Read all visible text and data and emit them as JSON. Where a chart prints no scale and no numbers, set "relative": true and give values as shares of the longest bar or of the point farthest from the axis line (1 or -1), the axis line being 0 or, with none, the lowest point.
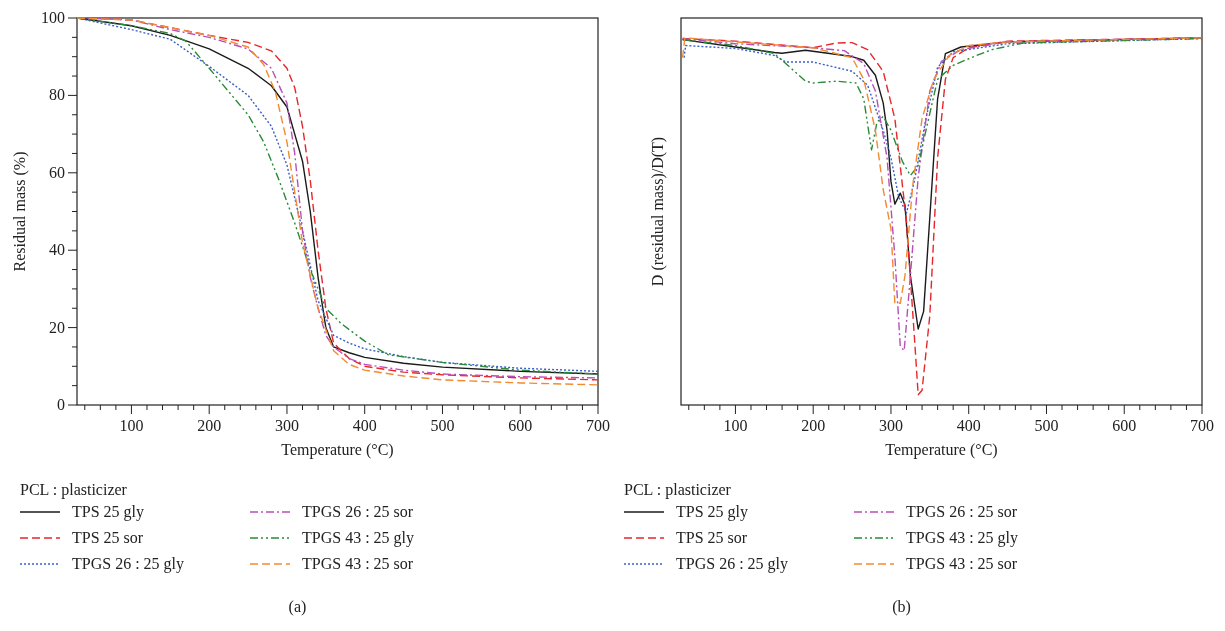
{
  "chart_data": [
    {
      "type": "line",
      "xlabel": "Temperature (°C)",
      "ylabel": "Residual mass (%)",
      "xlim": [
        30,
        700
      ],
      "ylim": [
        0,
        100
      ],
      "xticks": [
        {
          "value": 40,
          "label": null
        },
        {
          "value": 60,
          "label": null
        },
        {
          "value": 80,
          "label": null
        },
        100,
        {
          "value": 120,
          "label": null
        },
        {
          "value": 140,
          "label": null
        },
        {
          "value": 160,
          "label": null
        },
        {
          "value": 180,
          "label": null
        },
        200,
        {
          "value": 220,
          "label": null
        },
        {
          "value": 240,
          "label": null
        },
        {
          "value": 260,
          "label": null
        },
        {
          "value": 280,
          "label": null
        },
        300,
        {
          "value": 320,
          "label": null
        },
        {
          "value": 340,
          "label": null
        },
        {
          "value": 360,
          "label": null
        },
        {
          "value": 380,
          "label": null
        },
        400,
        {
          "value": 420,
          "label": null
        },
        {
          "value": 440,
          "label": null
        },
        {
          "value": 460,
          "label": null
        },
        {
          "value": 480,
          "label": null
        },
        500,
        {
          "value": 520,
          "label": null
        },
        {
          "value": 540,
          "label": null
        },
        {
          "value": 560,
          "label": null
        },
        {
          "value": 580,
          "label": null
        },
        600,
        {
          "value": 620,
          "label": null
        },
        {
          "value": 640,
          "label": null
        },
        {
          "value": 660,
          "label": null
        },
        {
          "value": 680,
          "label": null
        },
        700
      ],
      "yticks": [
        0,
        {
          "value": 5,
          "label": null
        },
        {
          "value": 10,
          "label": null
        },
        {
          "value": 15,
          "label": null
        },
        20,
        {
          "value": 25,
          "label": null
        },
        {
          "value": 30,
          "label": null
        },
        {
          "value": 35,
          "label": null
        },
        40,
        {
          "value": 45,
          "label": null
        },
        {
          "value": 50,
          "label": null
        },
        {
          "value": 55,
          "label": null
        },
        60,
        {
          "value": 65,
          "label": null
        },
        {
          "value": 70,
          "label": null
        },
        {
          "value": 75,
          "label": null
        },
        80,
        {
          "value": 85,
          "label": null
        },
        {
          "value": 90,
          "label": null
        },
        {
          "value": 95,
          "label": null
        },
        100
      ],
      "legend": "bottom",
      "legend_title": "PCL : plasticizer",
      "annotations": [
        "(a)"
      ],
      "series": [
        {
          "name": "TPS 25 gly",
          "color": "#1a1a1a",
          "line_style": "solid",
          "x": [
            30,
            100,
            150,
            200,
            250,
            280,
            300,
            310,
            320,
            330,
            340,
            350,
            360,
            380,
            400,
            450,
            500,
            600,
            700
          ],
          "values": [
            100,
            98,
            95.5,
            92,
            87,
            82.5,
            77,
            70,
            63,
            50,
            33,
            20,
            15,
            13.5,
            12.3,
            10.8,
            9.8,
            8.7,
            8
          ]
        },
        {
          "name": "TPS 25 sor",
          "color": "#e8262a",
          "line_style": "dashed",
          "x": [
            30,
            100,
            150,
            200,
            250,
            280,
            300,
            310,
            320,
            330,
            340,
            350,
            360,
            380,
            400,
            450,
            500,
            600,
            700
          ],
          "values": [
            100,
            99.5,
            97.5,
            95.5,
            93.7,
            91.5,
            87,
            82,
            72,
            58,
            40,
            25,
            16,
            12,
            10,
            8.5,
            7.8,
            7,
            6.5
          ]
        },
        {
          "name": "TPGS 26 : 25 gly",
          "color": "#3a5fc8",
          "line_style": "dotted",
          "x": [
            30,
            100,
            150,
            200,
            250,
            280,
            300,
            320,
            340,
            360,
            380,
            400,
            450,
            500,
            600,
            700
          ],
          "values": [
            100,
            97,
            94.5,
            87.5,
            80,
            72,
            62,
            45,
            27,
            18,
            16,
            14.5,
            12.5,
            11,
            9.5,
            8.7
          ]
        },
        {
          "name": "TPGS 26 : 25 sor",
          "color": "#b84fb8",
          "line_style": "dashdot",
          "x": [
            30,
            100,
            150,
            200,
            250,
            280,
            300,
            310,
            320,
            330,
            340,
            350,
            360,
            380,
            400,
            450,
            500,
            600,
            700
          ],
          "values": [
            100,
            99.5,
            97,
            95,
            92,
            87,
            78,
            65,
            45,
            33,
            25,
            18,
            15,
            12,
            10.5,
            9,
            8,
            7.3,
            7
          ]
        },
        {
          "name": "TPGS 43 : 25 gly",
          "color": "#2a8a3a",
          "line_style": "dashdotdot",
          "x": [
            30,
            100,
            150,
            170,
            200,
            250,
            270,
            290,
            310,
            330,
            350,
            370,
            400,
            430,
            500,
            600,
            700
          ],
          "values": [
            100,
            98,
            96,
            94,
            87,
            75,
            68,
            58,
            47,
            35,
            25,
            21,
            16.5,
            13,
            11,
            9,
            8
          ]
        },
        {
          "name": "TPGS 43 : 25 sor",
          "color": "#f28a30",
          "line_style": "dashed",
          "x": [
            30,
            100,
            150,
            200,
            250,
            270,
            285,
            300,
            310,
            320,
            340,
            360,
            380,
            400,
            450,
            500,
            600,
            700
          ],
          "values": [
            100,
            99.5,
            97.5,
            95.5,
            92.5,
            88,
            81,
            68,
            55,
            42,
            25,
            14,
            10.5,
            9,
            7.5,
            6.5,
            5.7,
            5.2
          ]
        }
      ]
    },
    {
      "type": "line",
      "xlabel": "Temperature (°C)",
      "ylabel": "D (residual mass)/D(T)",
      "xlim": [
        30,
        700
      ],
      "relative": true,
      "tick_labels": "x",
      "xticks": [
        {
          "value": 40,
          "label": null
        },
        {
          "value": 60,
          "label": null
        },
        {
          "value": 80,
          "label": null
        },
        100,
        {
          "value": 120,
          "label": null
        },
        {
          "value": 140,
          "label": null
        },
        {
          "value": 160,
          "label": null
        },
        {
          "value": 180,
          "label": null
        },
        200,
        {
          "value": 220,
          "label": null
        },
        {
          "value": 240,
          "label": null
        },
        {
          "value": 260,
          "label": null
        },
        {
          "value": 280,
          "label": null
        },
        300,
        {
          "value": 320,
          "label": null
        },
        {
          "value": 340,
          "label": null
        },
        {
          "value": 360,
          "label": null
        },
        {
          "value": 380,
          "label": null
        },
        400,
        {
          "value": 420,
          "label": null
        },
        {
          "value": 440,
          "label": null
        },
        {
          "value": 460,
          "label": null
        },
        {
          "value": 480,
          "label": null
        },
        500,
        {
          "value": 520,
          "label": null
        },
        {
          "value": 540,
          "label": null
        },
        {
          "value": 560,
          "label": null
        },
        {
          "value": 580,
          "label": null
        },
        600,
        {
          "value": 620,
          "label": null
        },
        {
          "value": 640,
          "label": null
        },
        {
          "value": 660,
          "label": null
        },
        {
          "value": 680,
          "label": null
        },
        700
      ],
      "legend": "bottom",
      "legend_title": "PCL : plasticizer",
      "annotations": [
        "(b)"
      ],
      "series": [
        {
          "name": "TPS 25 gly",
          "color": "#1a1a1a",
          "line_style": "solid",
          "x": [
            32,
            100,
            150,
            160,
            190,
            250,
            265,
            280,
            290,
            295,
            300,
            305,
            312,
            318,
            325,
            335,
            342,
            350,
            360,
            370,
            390,
            450,
            700
          ],
          "values": [
            0.995,
            0.975,
            0.96,
            0.958,
            0.966,
            0.949,
            0.939,
            0.898,
            0.823,
            0.748,
            0.609,
            0.547,
            0.577,
            0.545,
            0.352,
            0.207,
            0.255,
            0.512,
            0.834,
            0.957,
            0.975,
            0.989,
            1
          ]
        },
        {
          "name": "TPS 25 sor",
          "color": "#e8262a",
          "line_style": "dashed",
          "x": [
            32,
            100,
            200,
            230,
            250,
            270,
            290,
            305,
            320,
            330,
            335,
            340,
            350,
            360,
            370,
            380,
            400,
            450,
            700
          ],
          "values": [
            0.998,
            0.991,
            0.973,
            0.986,
            0.987,
            0.968,
            0.909,
            0.78,
            0.5,
            0.19,
            0.028,
            0.04,
            0.244,
            0.673,
            0.887,
            0.946,
            0.973,
            0.991,
            1
          ]
        },
        {
          "name": "TPGS 26 : 25 gly",
          "color": "#3a5fc8",
          "line_style": "dotted",
          "x": [
            34,
            36,
            100,
            150,
            165,
            200,
            250,
            270,
            290,
            300,
            310,
            320,
            330,
            345,
            360,
            380,
            450,
            700
          ],
          "values": [
            0.946,
            0.979,
            0.971,
            0.952,
            0.934,
            0.934,
            0.909,
            0.871,
            0.748,
            0.673,
            0.566,
            0.523,
            0.609,
            0.78,
            0.92,
            0.962,
            0.984,
            0.998
          ]
        },
        {
          "name": "TPGS 26 : 25 sor",
          "color": "#b84fb8",
          "line_style": "dashdot",
          "x": [
            32,
            100,
            200,
            240,
            265,
            280,
            295,
            305,
            312,
            317,
            325,
            335,
            350,
            365,
            390,
            450,
            700
          ],
          "values": [
            0.998,
            0.984,
            0.973,
            0.965,
            0.93,
            0.855,
            0.673,
            0.405,
            0.159,
            0.148,
            0.352,
            0.62,
            0.855,
            0.936,
            0.968,
            0.989,
            1
          ]
        },
        {
          "name": "TPGS 43 : 25 gly",
          "color": "#2a8a3a",
          "line_style": "dashdotdot",
          "x": [
            32,
            100,
            150,
            170,
            190,
            200,
            230,
            255,
            265,
            275,
            282,
            290,
            300,
            315,
            325,
            335,
            345,
            360,
            380,
            410,
            430,
            470,
            700
          ],
          "values": [
            0.995,
            0.979,
            0.957,
            0.92,
            0.882,
            0.877,
            0.882,
            0.877,
            0.834,
            0.695,
            0.77,
            0.786,
            0.748,
            0.662,
            0.625,
            0.652,
            0.748,
            0.887,
            0.925,
            0.952,
            0.968,
            0.986,
            0.998
          ]
        },
        {
          "name": "TPGS 43 : 25 sor",
          "color": "#f28a30",
          "line_style": "dashed",
          "x": [
            32,
            35,
            100,
            200,
            250,
            265,
            280,
            290,
            300,
            305,
            312,
            318,
            328,
            340,
            355,
            375,
            400,
            450,
            700
          ],
          "values": [
            0.946,
            1,
            0.989,
            0.973,
            0.946,
            0.887,
            0.748,
            0.587,
            0.48,
            0.277,
            0.277,
            0.352,
            0.598,
            0.78,
            0.887,
            0.952,
            0.979,
            0.989,
            1
          ]
        }
      ]
    }
  ]
}
